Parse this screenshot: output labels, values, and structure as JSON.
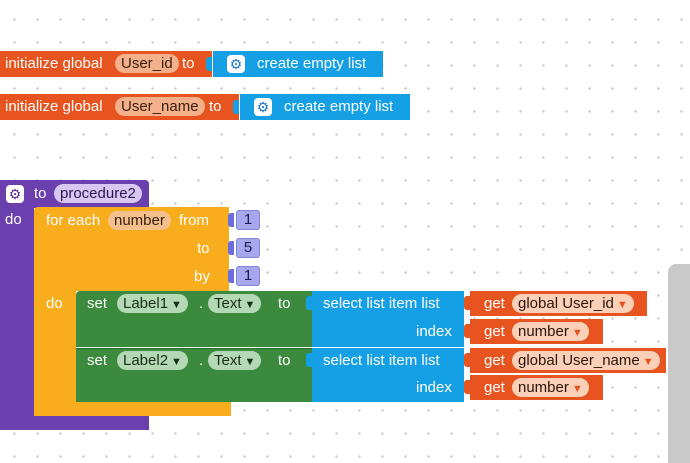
{
  "blocks": {
    "init1": {
      "label": "initialize global",
      "var": "User_id",
      "to": "to",
      "value": "create empty list"
    },
    "init2": {
      "label": "initialize global",
      "var": "User_name",
      "to": "to",
      "value": "create empty list"
    },
    "procedure": {
      "to": "to",
      "name": "procedure2",
      "do": "do"
    },
    "foreach": {
      "label": "for each",
      "var": "number",
      "from": "from",
      "from_val": "1",
      "to": "to",
      "to_val": "5",
      "by": "by",
      "by_val": "1",
      "do": "do"
    },
    "set1": {
      "set": "set",
      "component": "Label1",
      "dot": ".",
      "prop": "Text",
      "to": "to",
      "select": "select list item  list",
      "get": "get",
      "list_var": "global User_id",
      "index": "index",
      "index_var": "number"
    },
    "set2": {
      "set": "set",
      "component": "Label2",
      "dot": ".",
      "prop": "Text",
      "to": "to",
      "select": "select list item  list",
      "get": "get",
      "list_var": "global User_name",
      "index": "index",
      "index_var": "number"
    }
  },
  "colors": {
    "variables": "#e8541f",
    "lists": "#15a0e6",
    "procedures": "#6b3fae",
    "control": "#f8ad1d",
    "components": "#3b8a3d",
    "math": "#a7a7ee"
  },
  "icons": {
    "mutator": "gear-icon",
    "dropdown": "dropdown-caret-icon"
  }
}
